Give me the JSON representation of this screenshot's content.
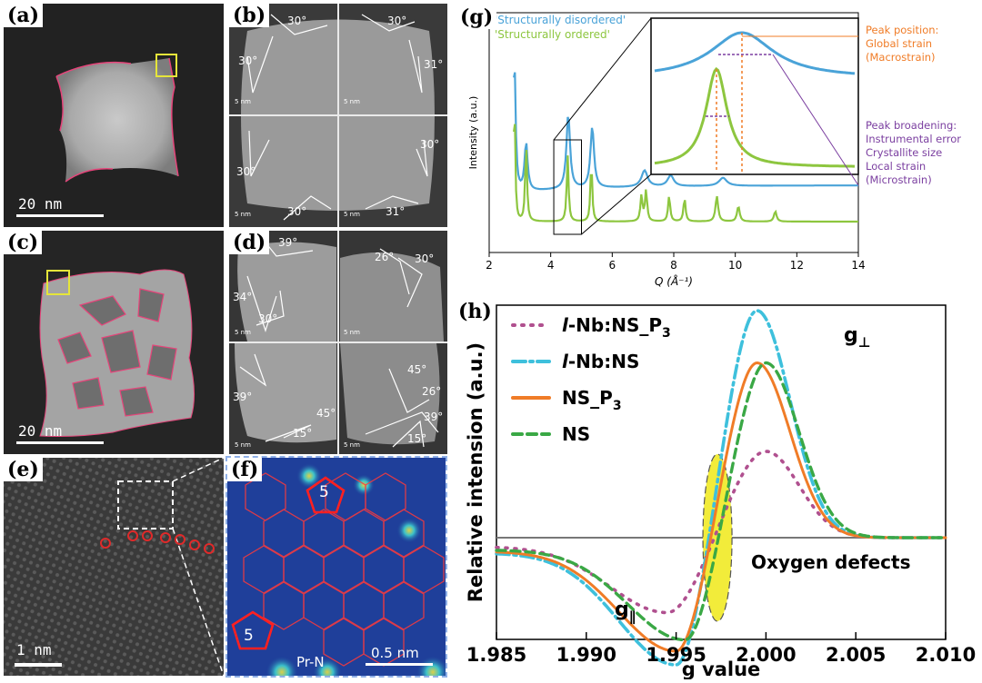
{
  "panels": {
    "a": {
      "label": "(a)",
      "scale": "20 nm"
    },
    "b": {
      "label": "(b)",
      "angles": [
        "30°",
        "30°",
        "30°",
        "31°",
        "30°",
        "30°",
        "30°",
        "31°"
      ],
      "tile_scale": "5 nm"
    },
    "c": {
      "label": "(c)",
      "scale": "20 nm"
    },
    "d": {
      "label": "(d)",
      "angles_tl": [
        "39°",
        "34°",
        "30°"
      ],
      "angles_tr": [
        "26°",
        "30°"
      ],
      "angles_bl": [
        "39°",
        "45°",
        "15°"
      ],
      "angles_br": [
        "45°",
        "26°",
        "39°",
        "15°"
      ],
      "tile_scale": "5 nm"
    },
    "e": {
      "label": "(e)",
      "scale": "1 nm"
    },
    "f": {
      "label": "(f)",
      "ring_a": "5",
      "ring_b": "5",
      "site": "Pr-N",
      "scale": "0.5 nm"
    },
    "g": {
      "label": "(g)"
    },
    "h": {
      "label": "(h)"
    }
  },
  "chart_data": [
    {
      "type": "line",
      "panel": "g",
      "xlabel": "Q (Å⁻¹)",
      "ylabel": "Intensity (a.u.)",
      "xlim": [
        2,
        14
      ],
      "xticks": [
        "2",
        "4",
        "6",
        "8",
        "10",
        "12",
        "14"
      ],
      "series": [
        {
          "name": "'Structurally disordered'",
          "color": "#4aa3d8",
          "peaks_Q": [
            2.82,
            3.2,
            4.57,
            5.35,
            7.05,
            7.9,
            9.6
          ]
        },
        {
          "name": "'Structurally ordered'",
          "color": "#8dc63f",
          "peaks_Q": [
            2.82,
            3.2,
            4.55,
            5.32,
            6.95,
            7.1,
            7.85,
            8.35,
            9.4,
            10.1,
            11.3
          ]
        }
      ],
      "annotations": {
        "position_title": "Peak position:",
        "position_l1": "Global strain",
        "position_l2": "(Macrostrain)",
        "broadening_title": "Peak broadening:",
        "broadening_l1": "Instrumental error",
        "broadening_l2": "Crystallite size",
        "broadening_l3": "Local strain",
        "broadening_l4": "(Microstrain)"
      }
    },
    {
      "type": "line",
      "panel": "h",
      "xlabel": "g value",
      "ylabel": "Relative intension (a.u.)",
      "xlim": [
        1.985,
        2.01
      ],
      "xticks": [
        "1.985",
        "1.990",
        "1.995",
        "2.000",
        "2.005",
        "2.010"
      ],
      "series": [
        {
          "name_prefix": "l",
          "name": "-Nb:NS_P",
          "sub": "3",
          "style": "dotted",
          "color": "#b0508f",
          "min": {
            "g": 1.9945,
            "y": -0.33
          },
          "max": {
            "g": 2.0,
            "y": 0.38
          }
        },
        {
          "name_prefix": "l",
          "name": "-Nb:NS",
          "sub": "",
          "style": "dashdot",
          "color": "#3ec0dc",
          "min": {
            "g": 1.995,
            "y": -0.56
          },
          "max": {
            "g": 1.9995,
            "y": 1.0
          }
        },
        {
          "name_prefix": "",
          "name": "NS_P",
          "sub": "3",
          "style": "solid",
          "color": "#f07c27",
          "min": {
            "g": 1.995,
            "y": -0.5
          },
          "max": {
            "g": 1.9995,
            "y": 0.77
          }
        },
        {
          "name_prefix": "",
          "name": "NS",
          "sub": "",
          "style": "dashed",
          "color": "#3aa845",
          "min": {
            "g": 1.9955,
            "y": -0.45
          },
          "max": {
            "g": 2.0,
            "y": 0.77
          }
        }
      ],
      "annotations": {
        "oxygen": "Oxygen defects",
        "g_perp": "g",
        "g_perp_sub": "⊥",
        "g_par": "g",
        "g_par_sub": "∥"
      }
    }
  ]
}
